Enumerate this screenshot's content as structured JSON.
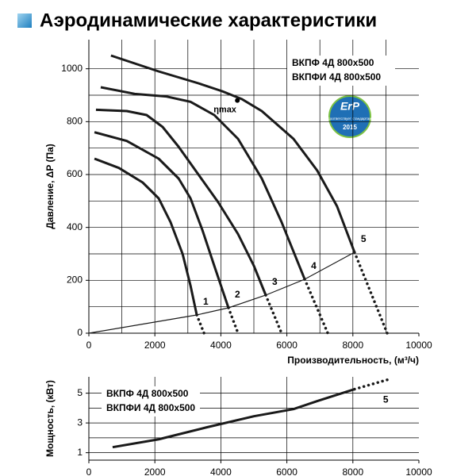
{
  "title": "Аэродинамические характеристики",
  "badge": {
    "label": "ErP",
    "text": "соответствует стандартам",
    "year": "2015"
  },
  "chart_data": [
    {
      "type": "line",
      "y_label": "Давление, ΔP (Па)",
      "x_label": "Производительность, (м³/ч)",
      "models": [
        "ВКПФ 4Д 800х500",
        "ВКПФИ 4Д 800х500"
      ],
      "annotation": {
        "text": "ηmax",
        "x": 4500,
        "y": 880
      },
      "xlim": [
        0,
        10000
      ],
      "ylim": [
        0,
        1110
      ],
      "xticks": [
        0,
        2000,
        4000,
        6000,
        8000,
        10000
      ],
      "yticks": [
        0,
        200,
        400,
        600,
        800,
        1000
      ],
      "xgrid": [
        1000,
        2000,
        3000,
        4000,
        5000,
        6000,
        7000,
        8000,
        9000
      ],
      "ygrid": [
        100,
        200,
        300,
        400,
        500,
        600,
        700,
        800,
        900,
        1000
      ],
      "series": [
        {
          "name": "1",
          "color": "#1a1a1a",
          "x": [
            170,
            910,
            1630,
            2115,
            2475,
            2840,
            3080,
            3270
          ],
          "values": [
            660,
            625,
            570,
            510,
            420,
            300,
            180,
            69
          ],
          "x_dotted": [
            3270,
            3490
          ],
          "values_dotted": [
            69,
            0
          ]
        },
        {
          "name": "2",
          "color": "#1a1a1a",
          "x": [
            170,
            1150,
            2115,
            2720,
            3080,
            3440,
            3800,
            4230
          ],
          "values": [
            760,
            727,
            660,
            585,
            510,
            390,
            255,
            96
          ],
          "x_dotted": [
            4230,
            4520
          ],
          "values_dotted": [
            96,
            0
          ]
        },
        {
          "name": "3",
          "color": "#1a1a1a",
          "x": [
            215,
            1150,
            1750,
            2235,
            2720,
            3320,
            3920,
            4520,
            5000,
            5360
          ],
          "values": [
            845,
            840,
            825,
            780,
            705,
            600,
            495,
            375,
            255,
            144
          ],
          "x_dotted": [
            5360,
            5840
          ],
          "values_dotted": [
            144,
            0
          ]
        },
        {
          "name": "4",
          "color": "#1a1a1a",
          "x": [
            360,
            1390,
            2355,
            3080,
            3800,
            4520,
            5240,
            5840,
            6540
          ],
          "values": [
            930,
            905,
            895,
            875,
            825,
            735,
            585,
            420,
            204
          ],
          "x_dotted": [
            6540,
            7240
          ],
          "values_dotted": [
            204,
            0
          ]
        },
        {
          "name": "5",
          "color": "#1a1a1a",
          "x": [
            670,
            2115,
            3320,
            4040,
            4640,
            5240,
            6200,
            6920,
            7520,
            8050
          ],
          "values": [
            1050,
            990,
            945,
            915,
            885,
            840,
            735,
            615,
            480,
            306
          ],
          "x_dotted": [
            8050,
            9040
          ],
          "values_dotted": [
            306,
            0
          ]
        }
      ],
      "system_curve": {
        "color": "#1a1a1a",
        "x": [
          0,
          3270,
          4230,
          5360,
          6540,
          8050
        ],
        "values": [
          0,
          69,
          96,
          144,
          204,
          306
        ]
      }
    },
    {
      "type": "line",
      "y_label": "Мощность, (кВт)",
      "models": [
        "ВКПФ 4Д 800х500",
        "ВКПФИ 4Д 800х500"
      ],
      "xlim": [
        0,
        10000
      ],
      "ylim": [
        0.5,
        6.1
      ],
      "xticks": [
        0,
        2000,
        4000,
        6000,
        8000,
        10000
      ],
      "yticks": [
        1,
        3,
        5
      ],
      "xgrid": [
        2000,
        4000,
        6000,
        8000
      ],
      "ygrid": [
        1,
        2,
        3,
        4,
        5
      ],
      "series": [
        {
          "name": "5",
          "color": "#1a1a1a",
          "x": [
            720,
            2115,
            3560,
            5000,
            6200,
            6920,
            8050
          ],
          "values": [
            1.37,
            1.9,
            2.7,
            3.45,
            3.93,
            4.47,
            5.27
          ],
          "x_dotted": [
            8050,
            9040
          ],
          "values_dotted": [
            5.27,
            5.9
          ]
        }
      ]
    }
  ]
}
